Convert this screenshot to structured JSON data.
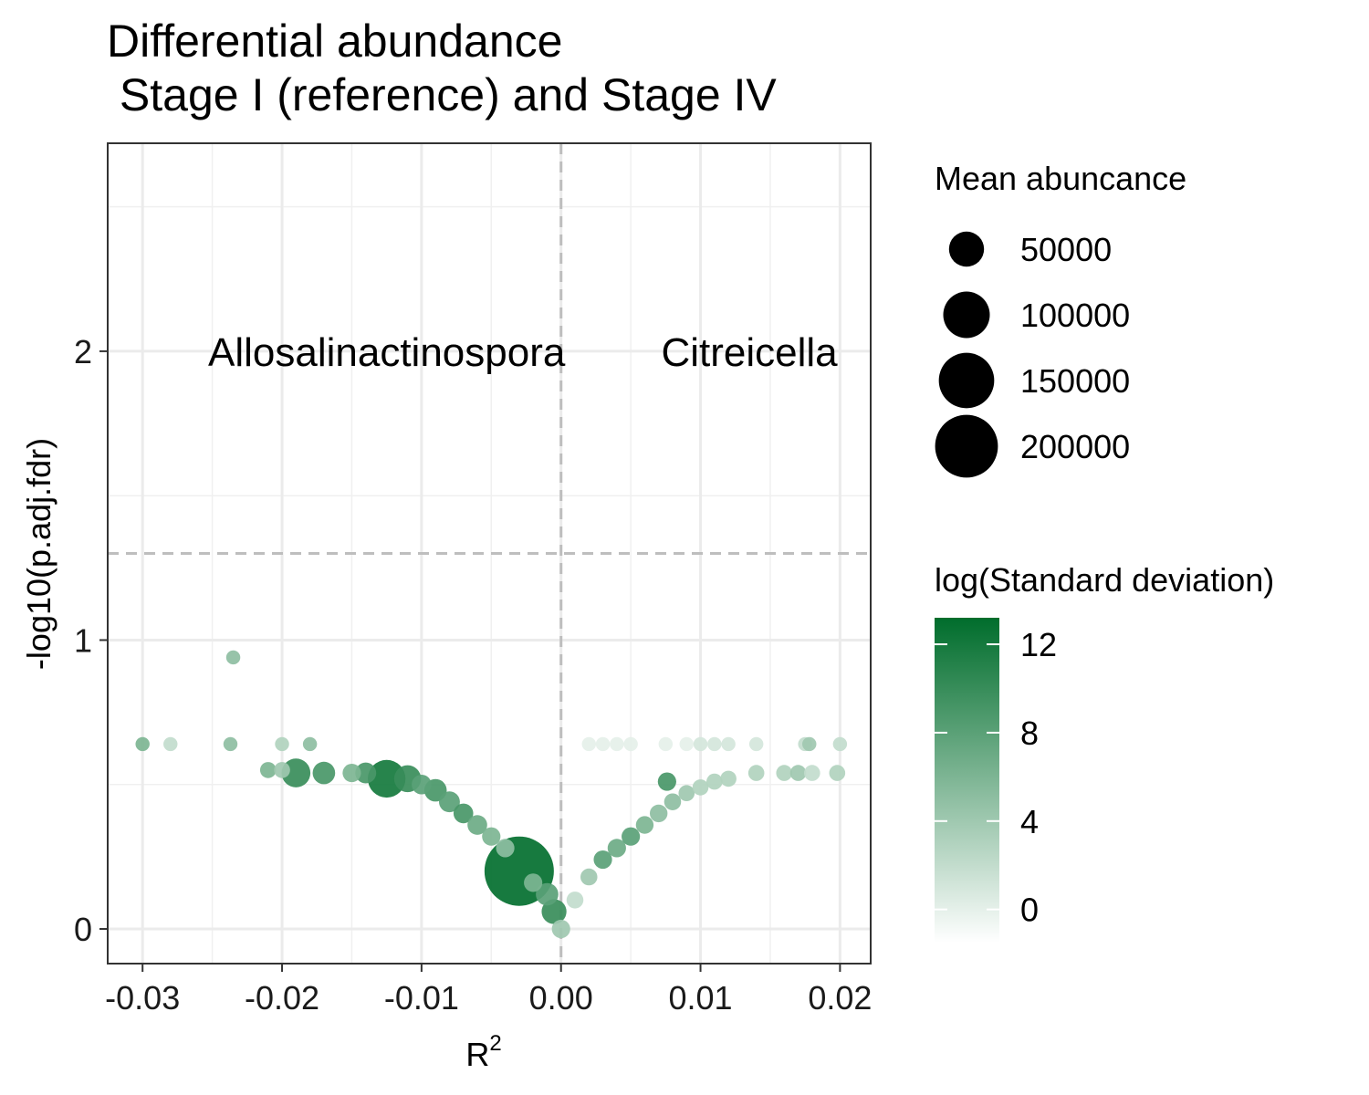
{
  "chart_data": {
    "type": "scatter",
    "title_line1": "Differential abundance",
    "title_line2": " Stage I (reference) and Stage IV",
    "xlabel": "R",
    "xlabel_superscript": "2",
    "ylabel": "-log10(p.adj.fdr)",
    "xlim": [
      -0.0325,
      0.0222
    ],
    "ylim": [
      -0.12,
      2.72
    ],
    "x_ticks": [
      -0.03,
      -0.02,
      -0.01,
      0.0,
      0.01,
      0.02
    ],
    "x_tick_labels": [
      "-0.03",
      "-0.02",
      "-0.01",
      "0.00",
      "0.01",
      "0.02"
    ],
    "y_ticks": [
      0,
      1,
      2
    ],
    "y_tick_labels": [
      "0",
      "1",
      "2"
    ],
    "grid": true,
    "reference_lines": {
      "vertical_x": 0.0,
      "horizontal_y": 1.3
    },
    "annotations": [
      {
        "text": "Allosalinactinospora",
        "x": -0.0125,
        "y": 2.0
      },
      {
        "text": "Citreicella",
        "x": 0.0135,
        "y": 2.0
      }
    ],
    "size_legend": {
      "title": "Mean abuncance",
      "entries": [
        {
          "label": "50000",
          "value": 50000
        },
        {
          "label": "100000",
          "value": 100000
        },
        {
          "label": "150000",
          "value": 150000
        },
        {
          "label": "200000",
          "value": 200000
        }
      ]
    },
    "color_legend": {
      "title": "log(Standard deviation)",
      "range": [
        -1.5,
        13.2
      ],
      "ticks": [
        0,
        4,
        8,
        12
      ],
      "tick_labels": [
        "0",
        "4",
        "8",
        "12"
      ],
      "low_color": "#ffffff",
      "high_color": "#006d2c"
    },
    "points": [
      {
        "x": -0.03,
        "y": 0.64,
        "sd": 6,
        "abund": 3000
      },
      {
        "x": -0.028,
        "y": 0.64,
        "sd": 2,
        "abund": 3000
      },
      {
        "x": -0.0237,
        "y": 0.64,
        "sd": 5,
        "abund": 3000
      },
      {
        "x": -0.0235,
        "y": 0.94,
        "sd": 5,
        "abund": 3000
      },
      {
        "x": -0.02,
        "y": 0.64,
        "sd": 3,
        "abund": 3000
      },
      {
        "x": -0.018,
        "y": 0.64,
        "sd": 5,
        "abund": 3000
      },
      {
        "x": 0.002,
        "y": 0.64,
        "sd": 0,
        "abund": 3000
      },
      {
        "x": 0.003,
        "y": 0.64,
        "sd": 0,
        "abund": 3000
      },
      {
        "x": 0.004,
        "y": 0.64,
        "sd": 0,
        "abund": 3000
      },
      {
        "x": 0.005,
        "y": 0.64,
        "sd": 0,
        "abund": 3000
      },
      {
        "x": 0.0075,
        "y": 0.64,
        "sd": 0,
        "abund": 3000
      },
      {
        "x": 0.009,
        "y": 0.64,
        "sd": 0,
        "abund": 3000
      },
      {
        "x": 0.01,
        "y": 0.64,
        "sd": 1,
        "abund": 3000
      },
      {
        "x": 0.011,
        "y": 0.64,
        "sd": 1,
        "abund": 3000
      },
      {
        "x": 0.012,
        "y": 0.64,
        "sd": 1,
        "abund": 3000
      },
      {
        "x": 0.014,
        "y": 0.64,
        "sd": 1,
        "abund": 3000
      },
      {
        "x": 0.0175,
        "y": 0.64,
        "sd": 2,
        "abund": 3000
      },
      {
        "x": 0.0178,
        "y": 0.64,
        "sd": 4,
        "abund": 3000
      },
      {
        "x": 0.02,
        "y": 0.64,
        "sd": 2,
        "abund": 3000
      },
      {
        "x": -0.021,
        "y": 0.55,
        "sd": 6,
        "abund": 5000
      },
      {
        "x": -0.02,
        "y": 0.55,
        "sd": 4,
        "abund": 5000
      },
      {
        "x": -0.019,
        "y": 0.54,
        "sd": 10,
        "abund": 30000
      },
      {
        "x": -0.017,
        "y": 0.54,
        "sd": 9,
        "abund": 15000
      },
      {
        "x": -0.015,
        "y": 0.54,
        "sd": 6,
        "abund": 8000
      },
      {
        "x": -0.014,
        "y": 0.54,
        "sd": 9,
        "abund": 12000
      },
      {
        "x": -0.0125,
        "y": 0.52,
        "sd": 12,
        "abund": 60000
      },
      {
        "x": -0.011,
        "y": 0.52,
        "sd": 10,
        "abund": 25000
      },
      {
        "x": -0.01,
        "y": 0.5,
        "sd": 8,
        "abund": 10000
      },
      {
        "x": -0.009,
        "y": 0.48,
        "sd": 9,
        "abund": 15000
      },
      {
        "x": -0.008,
        "y": 0.44,
        "sd": 8,
        "abund": 12000
      },
      {
        "x": -0.007,
        "y": 0.4,
        "sd": 9,
        "abund": 10000
      },
      {
        "x": -0.006,
        "y": 0.36,
        "sd": 7,
        "abund": 10000
      },
      {
        "x": -0.005,
        "y": 0.32,
        "sd": 6,
        "abund": 8000
      },
      {
        "x": -0.004,
        "y": 0.28,
        "sd": 5,
        "abund": 8000
      },
      {
        "x": -0.003,
        "y": 0.2,
        "sd": 13,
        "abund": 250000
      },
      {
        "x": -0.002,
        "y": 0.16,
        "sd": 6,
        "abund": 8000
      },
      {
        "x": -0.001,
        "y": 0.12,
        "sd": 8,
        "abund": 15000
      },
      {
        "x": -0.0005,
        "y": 0.06,
        "sd": 10,
        "abund": 20000
      },
      {
        "x": 0.0,
        "y": 0.0,
        "sd": 4,
        "abund": 8000
      },
      {
        "x": 0.001,
        "y": 0.1,
        "sd": 2,
        "abund": 6000
      },
      {
        "x": 0.002,
        "y": 0.18,
        "sd": 4,
        "abund": 6000
      },
      {
        "x": 0.003,
        "y": 0.24,
        "sd": 8,
        "abund": 8000
      },
      {
        "x": 0.004,
        "y": 0.28,
        "sd": 7,
        "abund": 8000
      },
      {
        "x": 0.005,
        "y": 0.32,
        "sd": 8,
        "abund": 8000
      },
      {
        "x": 0.006,
        "y": 0.36,
        "sd": 6,
        "abund": 7000
      },
      {
        "x": 0.007,
        "y": 0.4,
        "sd": 5,
        "abund": 7000
      },
      {
        "x": 0.008,
        "y": 0.44,
        "sd": 5,
        "abund": 6000
      },
      {
        "x": 0.0076,
        "y": 0.51,
        "sd": 9,
        "abund": 8000
      },
      {
        "x": 0.009,
        "y": 0.47,
        "sd": 4,
        "abund": 5000
      },
      {
        "x": 0.01,
        "y": 0.49,
        "sd": 3,
        "abund": 5000
      },
      {
        "x": 0.011,
        "y": 0.51,
        "sd": 3,
        "abund": 5000
      },
      {
        "x": 0.012,
        "y": 0.52,
        "sd": 3,
        "abund": 5000
      },
      {
        "x": 0.014,
        "y": 0.54,
        "sd": 3,
        "abund": 5000
      },
      {
        "x": 0.016,
        "y": 0.54,
        "sd": 3,
        "abund": 5000
      },
      {
        "x": 0.017,
        "y": 0.54,
        "sd": 4,
        "abund": 5000
      },
      {
        "x": 0.018,
        "y": 0.54,
        "sd": 2,
        "abund": 5000
      },
      {
        "x": 0.0198,
        "y": 0.54,
        "sd": 3,
        "abund": 5000
      }
    ]
  }
}
